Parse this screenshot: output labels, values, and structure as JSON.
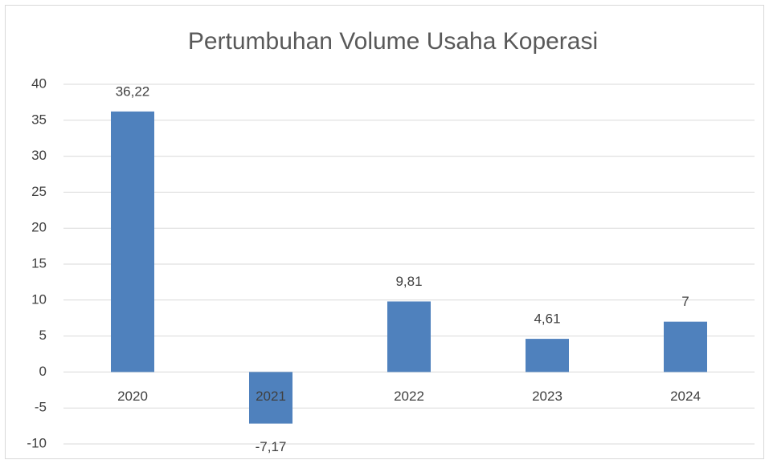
{
  "chart_data": {
    "type": "bar",
    "title": "Pertumbuhan Volume Usaha Koperasi",
    "categories": [
      "2020",
      "2021",
      "2022",
      "2023",
      "2024"
    ],
    "values": [
      36.22,
      -7.17,
      9.81,
      4.61,
      7
    ],
    "value_labels": [
      "36,22",
      "-7,17",
      "9,81",
      "4,61",
      "7"
    ],
    "color": "#4f81bd",
    "ylim": [
      -10,
      40
    ],
    "yticks": [
      -10,
      -5,
      0,
      5,
      10,
      15,
      20,
      25,
      30,
      35,
      40
    ],
    "grid": true
  }
}
